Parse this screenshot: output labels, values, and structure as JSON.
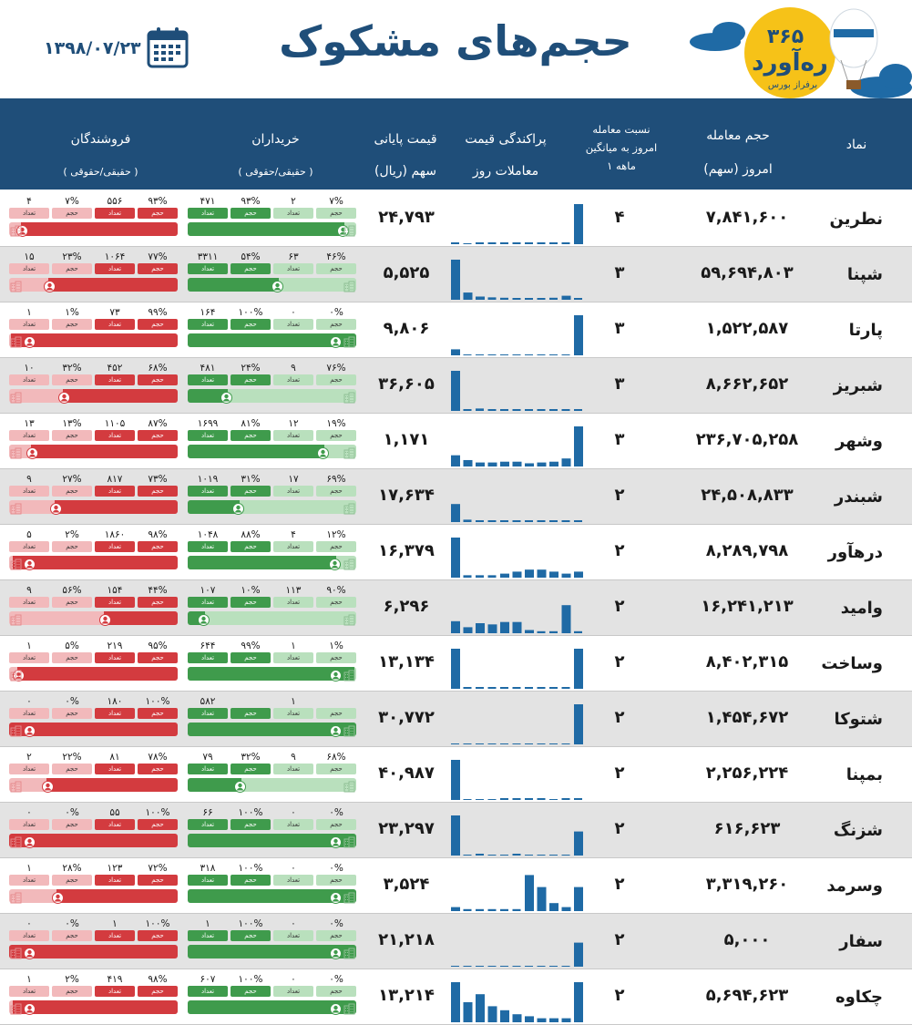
{
  "header": {
    "title": "حجم‌های مشکوک",
    "date": "۱۳۹۸/۰۷/۲۳",
    "logo_number": "۳۶۵",
    "logo_name": "ره‌آورد",
    "logo_sub": "برفراز بورس",
    "col_symbol": "نماد",
    "col_volume_1": "حجم معامله",
    "col_volume_2": "امروز (سهم)",
    "col_ratio_1": "نسبت معامله",
    "col_ratio_2": "امروز به میانگین",
    "col_ratio_3": "۱ ماهه",
    "col_dist_1": "پراکندگی قیمت",
    "col_dist_2": "معاملات روز",
    "col_price_1": "قیمت پایانی",
    "col_price_2": "سهم (ریال)",
    "col_buyers_1": "خریداران",
    "col_buyers_2": "( حقیقی/حقوقی )",
    "col_sellers_1": "فروشندگان",
    "col_sellers_2": "( حقیقی/حقوقی )"
  },
  "tag_labels": {
    "volume": "حجم",
    "count": "تعداد"
  },
  "colors": {
    "navy": "#1f4e79",
    "green": "#3f9b4c",
    "green_light": "#b9e0bd",
    "red": "#d33b3f",
    "red_light": "#f2b9bb",
    "bar": "#1f6aa5",
    "row_alt": "#e3e3e3"
  },
  "icons": [
    "calendar-icon",
    "person-icon",
    "building-icon",
    "balloon-icon",
    "cloud-icon"
  ],
  "chart_data": {
    "type": "table",
    "rows": [
      {
        "symbol": "نطرین",
        "volume": "۷,۸۴۱,۶۰۰",
        "ratio": "۴",
        "price": "۲۴,۷۹۳",
        "dist": [
          0.02,
          0,
          0.02,
          0.02,
          0.02,
          0.02,
          0.02,
          0.02,
          0.02,
          0.02,
          1
        ],
        "buy": {
          "legal_vol": "۷%",
          "legal_cnt": "۲",
          "real_vol": "۹۳%",
          "real_cnt": "۴۷۱",
          "real_share": 0.93
        },
        "sell": {
          "real_vol": "۹۳%",
          "real_cnt": "۵۵۶",
          "legal_vol": "۷%",
          "legal_cnt": "۴",
          "real_share": 0.93
        }
      },
      {
        "symbol": "شپنا",
        "volume": "۵۹,۶۹۴,۸۰۳",
        "ratio": "۳",
        "price": "۵,۵۲۵",
        "dist": [
          1,
          0.18,
          0.08,
          0.06,
          0.05,
          0.04,
          0.03,
          0.03,
          0.05,
          0.1,
          0.04
        ],
        "buy": {
          "legal_vol": "۴۶%",
          "legal_cnt": "۶۳",
          "real_vol": "۵۴%",
          "real_cnt": "۳۳۱۱",
          "real_share": 0.54
        },
        "sell": {
          "real_vol": "۷۷%",
          "real_cnt": "۱۰۶۴",
          "legal_vol": "۲۳%",
          "legal_cnt": "۱۵",
          "real_share": 0.77
        }
      },
      {
        "symbol": "پارتا",
        "volume": "۱,۵۲۲,۵۸۷",
        "ratio": "۳",
        "price": "۹,۸۰۶",
        "dist": [
          0.15,
          0,
          0,
          0,
          0,
          0,
          0,
          0,
          0,
          0,
          1
        ],
        "buy": {
          "legal_vol": "۰%",
          "legal_cnt": "۰",
          "real_vol": "۱۰۰%",
          "real_cnt": "۱۶۴",
          "real_share": 1.0
        },
        "sell": {
          "real_vol": "۹۹%",
          "real_cnt": "۷۳",
          "legal_vol": "۱%",
          "legal_cnt": "۱",
          "real_share": 0.99
        }
      },
      {
        "symbol": "شبریز",
        "volume": "۸,۶۶۲,۶۵۲",
        "ratio": "۳",
        "price": "۳۶,۶۰۵",
        "dist": [
          1,
          0.03,
          0.06,
          0.03,
          0.03,
          0.03,
          0.03,
          0.03,
          0.03,
          0.03,
          0.03
        ],
        "buy": {
          "legal_vol": "۷۶%",
          "legal_cnt": "۹",
          "real_vol": "۲۴%",
          "real_cnt": "۴۸۱",
          "real_share": 0.24
        },
        "sell": {
          "real_vol": "۶۸%",
          "real_cnt": "۴۵۲",
          "legal_vol": "۳۲%",
          "legal_cnt": "۱۰",
          "real_share": 0.68
        }
      },
      {
        "symbol": "وشهر",
        "volume": "۲۳۶,۷۰۵,۲۵۸",
        "ratio": "۳",
        "price": "۱,۱۷۱",
        "dist": [
          0.28,
          0.16,
          0.1,
          0.1,
          0.12,
          0.12,
          0.08,
          0.1,
          0.12,
          0.2,
          1
        ],
        "buy": {
          "legal_vol": "۱۹%",
          "legal_cnt": "۱۲",
          "real_vol": "۸۱%",
          "real_cnt": "۱۶۹۹",
          "real_share": 0.81
        },
        "sell": {
          "real_vol": "۸۷%",
          "real_cnt": "۱۱۰۵",
          "legal_vol": "۱۳%",
          "legal_cnt": "۱۳",
          "real_share": 0.87
        }
      },
      {
        "symbol": "شبندر",
        "volume": "۲۴,۵۰۸,۸۳۳",
        "ratio": "۲",
        "price": "۱۷,۶۳۴",
        "dist": [
          0.45,
          0.06,
          0.03,
          0.03,
          0.03,
          0.03,
          0.03,
          0.03,
          0.03,
          0.03,
          0.03
        ],
        "buy": {
          "legal_vol": "۶۹%",
          "legal_cnt": "۱۷",
          "real_vol": "۳۱%",
          "real_cnt": "۱۰۱۹",
          "real_share": 0.31
        },
        "sell": {
          "real_vol": "۷۳%",
          "real_cnt": "۸۱۷",
          "legal_vol": "۲۷%",
          "legal_cnt": "۹",
          "real_share": 0.73
        }
      },
      {
        "symbol": "درهآور",
        "volume": "۸,۲۸۹,۷۹۸",
        "ratio": "۲",
        "price": "۱۶,۳۷۹",
        "dist": [
          1,
          0.06,
          0.06,
          0.06,
          0.1,
          0.15,
          0.2,
          0.2,
          0.15,
          0.1,
          0.15
        ],
        "buy": {
          "legal_vol": "۱۲%",
          "legal_cnt": "۴",
          "real_vol": "۸۸%",
          "real_cnt": "۱۰۴۸",
          "real_share": 0.88
        },
        "sell": {
          "real_vol": "۹۸%",
          "real_cnt": "۱۸۶۰",
          "legal_vol": "۲%",
          "legal_cnt": "۵",
          "real_share": 0.98
        }
      },
      {
        "symbol": "وامید",
        "volume": "۱۶,۲۴۱,۲۱۳",
        "ratio": "۲",
        "price": "۶,۲۹۶",
        "dist": [
          0.3,
          0.15,
          0.25,
          0.22,
          0.28,
          0.28,
          0.08,
          0.05,
          0.05,
          0.7,
          0.05
        ],
        "buy": {
          "legal_vol": "۹۰%",
          "legal_cnt": "۱۱۳",
          "real_vol": "۱۰%",
          "real_cnt": "۱۰۷",
          "real_share": 0.1
        },
        "sell": {
          "real_vol": "۴۴%",
          "real_cnt": "۱۵۴",
          "legal_vol": "۵۶%",
          "legal_cnt": "۹",
          "real_share": 0.44
        }
      },
      {
        "symbol": "وساخت",
        "volume": "۸,۴۰۲,۳۱۵",
        "ratio": "۲",
        "price": "۱۳,۱۳۴",
        "dist": [
          1,
          0.03,
          0.03,
          0.03,
          0.03,
          0.03,
          0.03,
          0.03,
          0.03,
          0.03,
          1
        ],
        "buy": {
          "legal_vol": "۱%",
          "legal_cnt": "۱",
          "real_vol": "۹۹%",
          "real_cnt": "۶۴۴",
          "real_share": 0.99
        },
        "sell": {
          "real_vol": "۹۵%",
          "real_cnt": "۲۱۹",
          "legal_vol": "۵%",
          "legal_cnt": "۱",
          "real_share": 0.95
        }
      },
      {
        "symbol": "شتوکا",
        "volume": "۱,۴۵۴,۶۷۲",
        "ratio": "۲",
        "price": "۳۰,۷۷۲",
        "dist": [
          0,
          0,
          0,
          0,
          0,
          0,
          0,
          0,
          0,
          0,
          1
        ],
        "buy": {
          "legal_vol": "",
          "legal_cnt": "۱",
          "real_vol": "",
          "real_cnt": "۵۸۲",
          "real_share": 1.0
        },
        "sell": {
          "real_vol": "۱۰۰%",
          "real_cnt": "۱۸۰",
          "legal_vol": "۰%",
          "legal_cnt": "۰",
          "real_share": 1.0
        }
      },
      {
        "symbol": "بمپنا",
        "volume": "۲,۲۵۶,۲۲۴",
        "ratio": "۲",
        "price": "۴۰,۹۸۷",
        "dist": [
          1,
          0,
          0,
          0,
          0.03,
          0.03,
          0.03,
          0.03,
          0,
          0.03,
          0.03
        ],
        "buy": {
          "legal_vol": "۶۸%",
          "legal_cnt": "۹",
          "real_vol": "۳۲%",
          "real_cnt": "۷۹",
          "real_share": 0.32
        },
        "sell": {
          "real_vol": "۷۸%",
          "real_cnt": "۸۱",
          "legal_vol": "۲۲%",
          "legal_cnt": "۲",
          "real_share": 0.78
        }
      },
      {
        "symbol": "شزنگ",
        "volume": "۶۱۶,۶۲۳",
        "ratio": "۲",
        "price": "۲۳,۲۹۷",
        "dist": [
          1,
          0,
          0.03,
          0,
          0,
          0.03,
          0,
          0,
          0,
          0,
          0.6
        ],
        "buy": {
          "legal_vol": "۰%",
          "legal_cnt": "۰",
          "real_vol": "۱۰۰%",
          "real_cnt": "۶۶",
          "real_share": 1.0
        },
        "sell": {
          "real_vol": "۱۰۰%",
          "real_cnt": "۵۵",
          "legal_vol": "۰%",
          "legal_cnt": "۰",
          "real_share": 1.0
        }
      },
      {
        "symbol": "وسرمد",
        "volume": "۳,۳۱۹,۲۶۰",
        "ratio": "۲",
        "price": "۳,۵۲۴",
        "dist": [
          0.1,
          0.05,
          0.05,
          0.05,
          0.05,
          0.05,
          0.9,
          0.6,
          0.2,
          0.1,
          0.6
        ],
        "buy": {
          "legal_vol": "۰%",
          "legal_cnt": "۰",
          "real_vol": "۱۰۰%",
          "real_cnt": "۳۱۸",
          "real_share": 1.0
        },
        "sell": {
          "real_vol": "۷۲%",
          "real_cnt": "۱۲۳",
          "legal_vol": "۲۸%",
          "legal_cnt": "۱",
          "real_share": 0.72
        }
      },
      {
        "symbol": "سفار",
        "volume": "۵,۰۰۰",
        "ratio": "۲",
        "price": "۲۱,۲۱۸",
        "dist": [
          0,
          0,
          0,
          0,
          0,
          0,
          0,
          0,
          0,
          0,
          0.6
        ],
        "buy": {
          "legal_vol": "۰%",
          "legal_cnt": "۰",
          "real_vol": "۱۰۰%",
          "real_cnt": "۱",
          "real_share": 1.0
        },
        "sell": {
          "real_vol": "۱۰۰%",
          "real_cnt": "۱",
          "legal_vol": "۰%",
          "legal_cnt": "۰",
          "real_share": 1.0
        }
      },
      {
        "symbol": "چکاوه",
        "volume": "۵,۶۹۴,۶۲۳",
        "ratio": "۲",
        "price": "۱۳,۲۱۴",
        "dist": [
          1,
          0.5,
          0.7,
          0.4,
          0.3,
          0.2,
          0.15,
          0.1,
          0.1,
          0.1,
          1
        ],
        "buy": {
          "legal_vol": "۰%",
          "legal_cnt": "۰",
          "real_vol": "۱۰۰%",
          "real_cnt": "۶۰۷",
          "real_share": 1.0
        },
        "sell": {
          "real_vol": "۹۸%",
          "real_cnt": "۴۱۹",
          "legal_vol": "۲%",
          "legal_cnt": "۱",
          "real_share": 0.98
        }
      }
    ]
  }
}
